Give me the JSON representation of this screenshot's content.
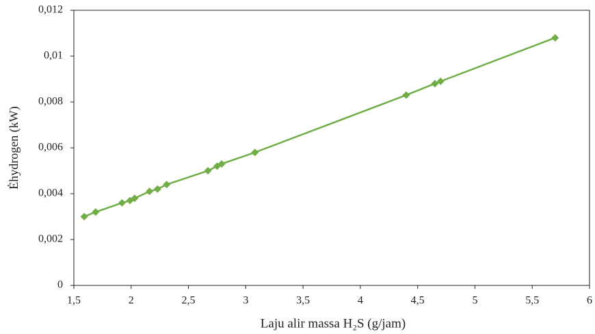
{
  "chart_data": {
    "type": "line",
    "x_label": "Laju alir massa H₂S (g/jam)",
    "y_label": "Ėhydrogen (kW)",
    "x": [
      1.59,
      1.69,
      1.92,
      1.99,
      2.03,
      2.16,
      2.23,
      2.31,
      2.67,
      2.75,
      2.79,
      3.08,
      4.4,
      4.65,
      4.7,
      5.7
    ],
    "values": [
      0.003,
      0.0032,
      0.0036,
      0.0037,
      0.0038,
      0.0041,
      0.0042,
      0.0044,
      0.005,
      0.0052,
      0.0053,
      0.0058,
      0.0083,
      0.0088,
      0.0089,
      0.0108
    ],
    "color": "#70ad47",
    "xlim": [
      1.5,
      6
    ],
    "xticks": [
      {
        "value": 1.5,
        "label": "1,5"
      },
      2,
      {
        "value": 2.5,
        "label": "2,5"
      },
      3,
      {
        "value": 3.5,
        "label": "3,5"
      },
      4,
      {
        "value": 4.5,
        "label": "4,5"
      },
      5,
      {
        "value": 5.5,
        "label": "5,5"
      },
      6
    ],
    "ylim": [
      0,
      0.012
    ],
    "yticks": [
      0,
      {
        "value": 0.002,
        "label": "0,002"
      },
      {
        "value": 0.004,
        "label": "0,004"
      },
      {
        "value": 0.006,
        "label": "0,006"
      },
      {
        "value": 0.008,
        "label": "0,008"
      },
      {
        "value": 0.01,
        "label": "0,01"
      },
      {
        "value": 0.012,
        "label": "0,012"
      }
    ]
  }
}
